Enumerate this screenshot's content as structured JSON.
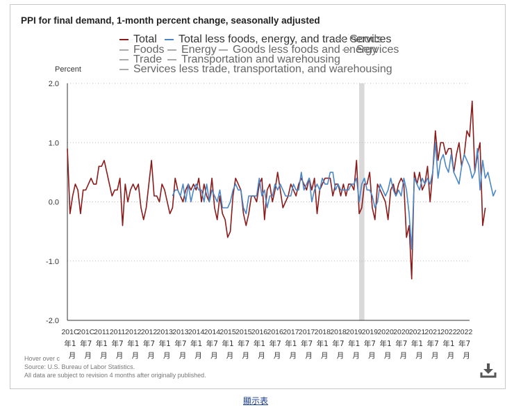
{
  "chart_title": "PPI for final demand, 1-month percent change, seasonally adjusted",
  "legend": [
    {
      "label": "Total",
      "color": "#8b1a1a"
    },
    {
      "label": "Total less foods, energy, and trade services",
      "color": "#4a86c5"
    },
    {
      "label": "Goods",
      "color": "#aaaaaa"
    },
    {
      "label": "Foods",
      "color": "#aaaaaa"
    },
    {
      "label": "Energy",
      "color": "#aaaaaa"
    },
    {
      "label": "Goods less foods and energy",
      "color": "#aaaaaa"
    },
    {
      "label": "Services",
      "color": "#aaaaaa"
    },
    {
      "label": "Trade",
      "color": "#aaaaaa"
    },
    {
      "label": "Transportation and warehousing",
      "color": "#aaaaaa"
    },
    {
      "label": "Services less trade, transportation, and warehousing",
      "color": "#aaaaaa"
    }
  ],
  "notes": {
    "hover": "Hover over c",
    "source": "Source: U.S. Bureau of Labor Statistics.",
    "revision": "All data are subject to revision 4 months after originally published."
  },
  "footer_link": "顯示表",
  "chart_data": {
    "type": "line",
    "title": "PPI for final demand, 1-month percent change, seasonally adjusted",
    "ylabel": "Percent",
    "xlabel": "",
    "ylim": [
      -2.0,
      2.0
    ],
    "yticks": [
      "2.0",
      "1.0",
      "0.0",
      "-1.0",
      "-2.0"
    ],
    "grid": true,
    "recession_shading": {
      "start_index": 111,
      "end_index": 113
    },
    "x_tick_labels": [
      {
        "index": 0,
        "label": "201C"
      },
      {
        "index": 6,
        "label": "201C"
      },
      {
        "index": 12,
        "label": "2011"
      },
      {
        "index": 18,
        "label": "2011"
      },
      {
        "index": 24,
        "label": "2012"
      },
      {
        "index": 30,
        "label": "2012"
      },
      {
        "index": 36,
        "label": "2013"
      },
      {
        "index": 42,
        "label": "2013"
      },
      {
        "index": 48,
        "label": "2014"
      },
      {
        "index": 54,
        "label": "2014"
      },
      {
        "index": 60,
        "label": "2015"
      },
      {
        "index": 66,
        "label": "2015"
      },
      {
        "index": 72,
        "label": "2016"
      },
      {
        "index": 78,
        "label": "2016"
      },
      {
        "index": 84,
        "label": "2017"
      },
      {
        "index": 90,
        "label": "2017"
      },
      {
        "index": 96,
        "label": "2018"
      },
      {
        "index": 102,
        "label": "2018"
      },
      {
        "index": 108,
        "label": "2019"
      },
      {
        "index": 114,
        "label": "2019"
      },
      {
        "index": 120,
        "label": "2020"
      },
      {
        "index": 126,
        "label": "2020"
      },
      {
        "index": 132,
        "label": "2021"
      },
      {
        "index": 138,
        "label": "2021"
      },
      {
        "index": 144,
        "label": "2022"
      },
      {
        "index": 150,
        "label": "2022"
      }
    ],
    "x_tick_sublabels": [
      "年1",
      "年7",
      "年1",
      "年7",
      "年1",
      "年7",
      "年1",
      "年7",
      "年1",
      "年7",
      "年1",
      "年7",
      "年1",
      "年7",
      "年1",
      "年7",
      "年1",
      "年7",
      "年1",
      "年7",
      "年1",
      "年7",
      "年1",
      "年7",
      "年1",
      "年7"
    ],
    "x_tick_month_char": "月",
    "series": [
      {
        "name": "Total",
        "color": "#8b1a1a",
        "start_index": 0,
        "values": [
          0.9,
          -0.2,
          0.1,
          0.3,
          0.2,
          -0.2,
          0.2,
          0.2,
          0.3,
          0.4,
          0.3,
          0.3,
          0.6,
          0.6,
          0.7,
          0.5,
          0.3,
          0.1,
          0.2,
          0.2,
          0.4,
          -0.4,
          0.3,
          0.0,
          0.2,
          0.3,
          0.2,
          0.3,
          -0.1,
          -0.3,
          -0.1,
          0.3,
          0.7,
          0.1,
          0.1,
          0.0,
          0.3,
          0.2,
          0.0,
          -0.2,
          -0.1,
          0.4,
          0.2,
          0.1,
          0.0,
          0.2,
          0.3,
          0.2,
          0.3,
          0.2,
          0.4,
          0.0,
          0.3,
          0.1,
          0.0,
          0.4,
          -0.1,
          -0.3,
          0.1,
          -0.2,
          -0.3,
          -0.6,
          -0.5,
          0.1,
          0.4,
          0.3,
          0.2,
          -0.2,
          -0.4,
          -0.2,
          0.1,
          0.1,
          0.0,
          0.3,
          0.4,
          -0.3,
          0.2,
          0.3,
          0.0,
          0.2,
          0.5,
          0.2,
          -0.1,
          0.0,
          0.1,
          0.3,
          0.2,
          0.1,
          0.3,
          0.4,
          0.3,
          0.2,
          0.4,
          0.2,
          0.4,
          -0.2,
          0.2,
          0.3,
          0.4,
          0.4,
          0.4,
          0.1,
          0.3,
          0.3,
          0.1,
          0.3,
          0.1,
          0.3,
          0.3,
          0.2,
          0.7,
          -0.2,
          -0.1,
          0.3,
          0.3,
          0.5,
          -0.1,
          -0.3,
          0.3,
          0.2,
          0.1,
          0.0,
          -0.3,
          0.2,
          0.3,
          0.1,
          0.3,
          0.4,
          0.3,
          -0.6,
          -0.4,
          -1.3,
          0.5,
          0.3,
          0.5,
          0.2,
          0.3,
          0.6,
          0.0,
          0.5,
          1.2,
          0.7,
          1.0,
          1.0,
          0.8,
          0.9,
          0.9,
          0.5,
          0.8,
          1.0,
          0.6,
          0.8,
          1.2,
          1.1,
          1.7,
          0.5,
          0.8,
          1.0,
          -0.4,
          -0.1
        ]
      },
      {
        "name": "Total less foods, energy, and trade services",
        "color": "#4a86c5",
        "start_index": 40,
        "values": [
          0.1,
          0.2,
          0.2,
          0.1,
          0.3,
          0.0,
          0.3,
          0.0,
          0.2,
          0.3,
          0.2,
          0.2,
          0.0,
          0.3,
          0.0,
          0.2,
          0.1,
          0.0,
          0.2,
          -0.1,
          -0.1,
          -0.1,
          0.0,
          0.2,
          0.3,
          0.2,
          0.2,
          -0.1,
          -0.2,
          0.1,
          0.1,
          0.1,
          0.1,
          0.4,
          0.1,
          0.2,
          -0.1,
          0.1,
          0.1,
          0.3,
          0.2,
          0.3,
          0.2,
          0.1,
          0.1,
          0.1,
          0.3,
          0.2,
          0.2,
          0.5,
          0.2,
          0.3,
          0.4,
          0.0,
          0.2,
          0.3,
          0.2,
          0.4,
          0.3,
          0.3,
          0.5,
          0.5,
          0.2,
          0.3,
          0.2,
          0.2,
          0.2,
          0.2,
          0.3,
          0.3,
          0.4,
          0.0,
          0.3,
          0.4,
          0.2,
          0.2,
          0.1,
          -0.1,
          0.0,
          0.3,
          0.2,
          0.1,
          0.2,
          0.4,
          0.2,
          0.1,
          0.2,
          0.1,
          0.4,
          0.2,
          -0.2,
          -0.8,
          0.4,
          0.3,
          0.2,
          0.4,
          0.3,
          0.4,
          0.3,
          0.5,
          1.0,
          0.4,
          0.7,
          0.8,
          0.6,
          0.5,
          0.8,
          0.5,
          0.4,
          0.3,
          0.6,
          0.8,
          0.7,
          0.6,
          0.4,
          0.5,
          0.9,
          0.2,
          0.7,
          0.4,
          0.5,
          0.3,
          0.1,
          0.2
        ]
      }
    ]
  }
}
